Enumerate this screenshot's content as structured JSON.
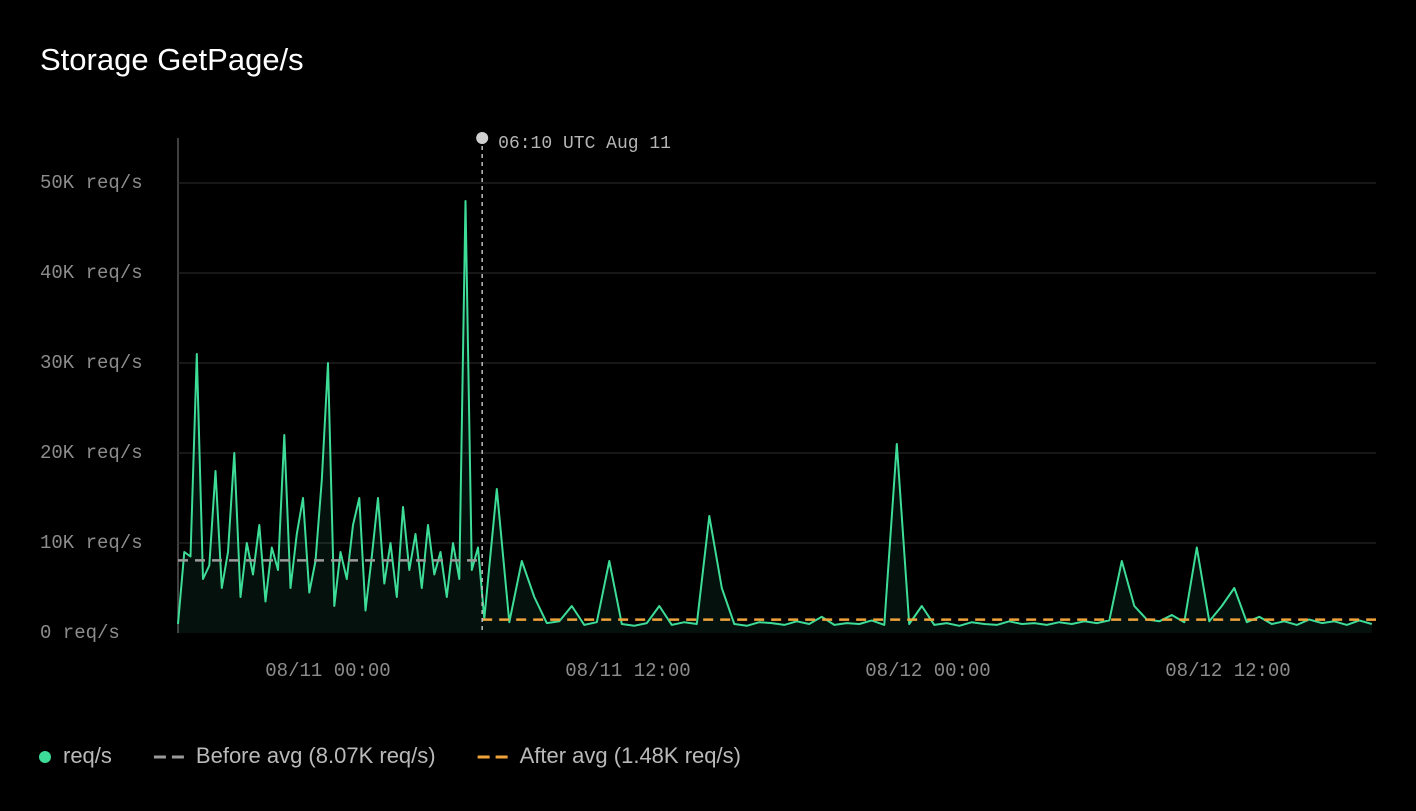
{
  "chart_data": {
    "type": "line",
    "title": "Storage GetPage/s",
    "x": [
      -6,
      -5.75,
      -5.5,
      -5.25,
      -5,
      -4.75,
      -4.5,
      -4.25,
      -4,
      -3.75,
      -3.5,
      -3.25,
      -3,
      -2.75,
      -2.5,
      -2.25,
      -2,
      -1.75,
      -1.5,
      -1.25,
      -1,
      -0.75,
      -0.5,
      -0.25,
      0,
      0.25,
      0.5,
      0.75,
      1,
      1.25,
      1.5,
      1.75,
      2,
      2.25,
      2.5,
      2.75,
      3,
      3.25,
      3.5,
      3.75,
      4,
      4.25,
      4.5,
      4.75,
      5,
      5.25,
      5.5,
      5.75,
      6,
      6.25,
      6.75,
      7.25,
      7.75,
      8.25,
      8.75,
      9.25,
      9.75,
      10.25,
      10.75,
      11.25,
      11.75,
      12.25,
      12.75,
      13.25,
      13.75,
      14.25,
      14.75,
      15.25,
      15.75,
      16.25,
      16.75,
      17.25,
      17.75,
      18.25,
      18.75,
      19.25,
      19.75,
      20.25,
      20.75,
      21.25,
      21.75,
      22.25,
      22.75,
      23.25,
      23.75,
      24.25,
      24.75,
      25.25,
      25.75,
      26.25,
      26.75,
      27.25,
      27.75,
      28.25,
      28.75,
      29.25,
      29.75,
      30.25,
      30.75,
      31.25,
      31.75,
      32.25,
      32.75,
      33.25,
      33.75,
      34.25,
      34.75,
      35.25,
      35.75,
      36.25,
      36.75,
      37.25,
      37.75,
      38.25,
      38.75,
      39.25,
      39.75,
      40.25,
      40.75,
      41.25,
      41.75
    ],
    "series": [
      {
        "name": "req/s",
        "color": "#3ddc97",
        "values": [
          1000,
          9000,
          8500,
          31000,
          6000,
          7500,
          18000,
          5000,
          9000,
          20000,
          4000,
          10000,
          6500,
          12000,
          3500,
          9500,
          7000,
          22000,
          5000,
          11000,
          15000,
          4500,
          8000,
          17000,
          30000,
          3000,
          9000,
          6000,
          12000,
          15000,
          2500,
          8500,
          15000,
          5500,
          10000,
          4000,
          14000,
          7000,
          11000,
          5000,
          12000,
          6500,
          9000,
          4000,
          10000,
          6000,
          48000,
          7000,
          9500,
          1600,
          16000,
          1200,
          8000,
          4000,
          1100,
          1300,
          3000,
          900,
          1200,
          8000,
          1000,
          800,
          1100,
          3000,
          900,
          1200,
          1000,
          13000,
          5000,
          1000,
          800,
          1200,
          1100,
          900,
          1300,
          1000,
          1800,
          900,
          1100,
          1000,
          1400,
          900,
          21000,
          1000,
          3000,
          900,
          1100,
          800,
          1200,
          1000,
          900,
          1300,
          1000,
          1100,
          900,
          1200,
          1000,
          1300,
          1100,
          1400,
          8000,
          3000,
          1500,
          1300,
          2000,
          1200,
          9500,
          1300,
          3000,
          5000,
          1200,
          1800,
          1000,
          1300,
          900,
          1500,
          1100,
          1300,
          900,
          1400,
          1000
        ]
      }
    ],
    "averages": [
      {
        "name": "Before avg (8.07K req/s)",
        "value": 8070,
        "color": "#9a9a9a",
        "x_range": [
          -6,
          6.1667
        ]
      },
      {
        "name": "After avg (1.48K req/s)",
        "value": 1480,
        "color": "#f0a33a",
        "x_range": [
          6.1667,
          41.92
        ]
      }
    ],
    "annotation": {
      "x": 6.1667,
      "label": "06:10 UTC Aug 11"
    },
    "xlim": [
      -6,
      41.92
    ],
    "ylim": [
      0,
      55000
    ],
    "xticks": [
      {
        "value": 0,
        "label": "08/11 00:00"
      },
      {
        "value": 12,
        "label": "08/11 12:00"
      },
      {
        "value": 24,
        "label": "08/12 00:00"
      },
      {
        "value": 36,
        "label": "08/12 12:00"
      }
    ],
    "yticks": [
      {
        "value": 0,
        "label": "0 req/s"
      },
      {
        "value": 10000,
        "label": "10K req/s"
      },
      {
        "value": 20000,
        "label": "20K req/s"
      },
      {
        "value": 30000,
        "label": "30K req/s"
      },
      {
        "value": 40000,
        "label": "40K req/s"
      },
      {
        "value": 50000,
        "label": "50K req/s"
      }
    ],
    "grid": true
  }
}
